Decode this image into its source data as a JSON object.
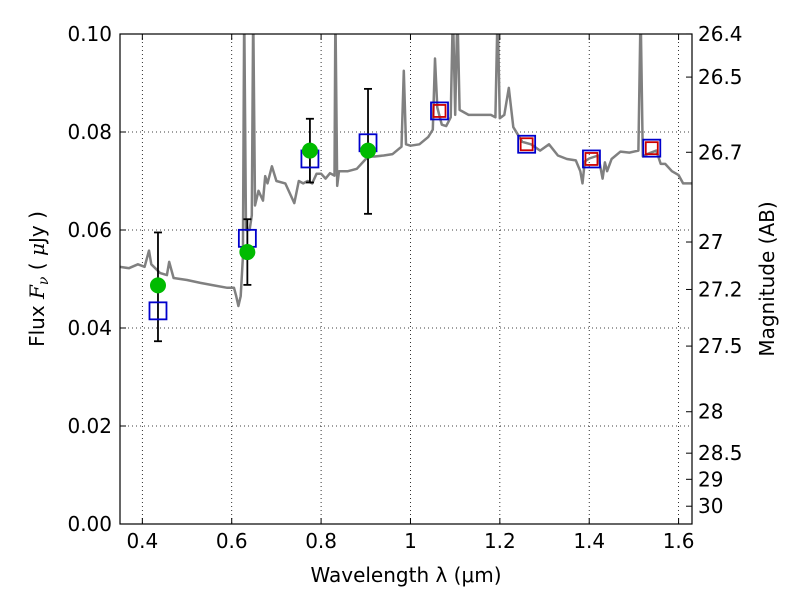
{
  "chart_data": {
    "type": "scatter",
    "xlabel": "Wavelength  λ (μm)",
    "ylabel": "Flux  Fν  ( μJy )",
    "y2label": "Magnitude (AB)",
    "xlim": [
      0.35,
      1.63
    ],
    "ylim": [
      0.0,
      0.1
    ],
    "grid": true,
    "x_ticks": [
      {
        "value": 0.4,
        "label": "0.4"
      },
      {
        "value": 0.6,
        "label": "0.6"
      },
      {
        "value": 0.8,
        "label": "0.8"
      },
      {
        "value": 1.0,
        "label": "1"
      },
      {
        "value": 1.2,
        "label": "1.2"
      },
      {
        "value": 1.4,
        "label": "1.4"
      },
      {
        "value": 1.6,
        "label": "1.6"
      }
    ],
    "y_ticks": [
      {
        "value": 0.0,
        "label": "0.00"
      },
      {
        "value": 0.02,
        "label": "0.02"
      },
      {
        "value": 0.04,
        "label": "0.04"
      },
      {
        "value": 0.06,
        "label": "0.06"
      },
      {
        "value": 0.08,
        "label": "0.08"
      },
      {
        "value": 0.1,
        "label": "0.10"
      }
    ],
    "y2_ticks": [
      {
        "value": 26.4,
        "label": "26.4"
      },
      {
        "value": 26.5,
        "label": "26.5"
      },
      {
        "value": 26.7,
        "label": "26.7"
      },
      {
        "value": 27.0,
        "label": "27"
      },
      {
        "value": 27.2,
        "label": "27.2"
      },
      {
        "value": 27.5,
        "label": "27.5"
      },
      {
        "value": 28.0,
        "label": "28"
      },
      {
        "value": 28.5,
        "label": "28.5"
      },
      {
        "value": 29.0,
        "label": "29"
      },
      {
        "value": 30.0,
        "label": "30"
      }
    ],
    "series": [
      {
        "kind": "line",
        "color": "#808080",
        "points": [
          [
            0.35,
            0.0525
          ],
          [
            0.37,
            0.0522
          ],
          [
            0.39,
            0.053
          ],
          [
            0.405,
            0.0525
          ],
          [
            0.415,
            0.0558
          ],
          [
            0.42,
            0.053
          ],
          [
            0.44,
            0.0512
          ],
          [
            0.455,
            0.0508
          ],
          [
            0.46,
            0.0535
          ],
          [
            0.47,
            0.0502
          ],
          [
            0.5,
            0.0498
          ],
          [
            0.53,
            0.0492
          ],
          [
            0.56,
            0.0487
          ],
          [
            0.59,
            0.0482
          ],
          [
            0.605,
            0.0482
          ],
          [
            0.61,
            0.0465
          ],
          [
            0.615,
            0.0445
          ],
          [
            0.62,
            0.0465
          ],
          [
            0.625,
            0.0545
          ],
          [
            0.628,
            0.105
          ],
          [
            0.632,
            0.06
          ],
          [
            0.64,
            0.06
          ],
          [
            0.645,
            0.063
          ],
          [
            0.648,
            0.105
          ],
          [
            0.652,
            0.065
          ],
          [
            0.66,
            0.068
          ],
          [
            0.67,
            0.066
          ],
          [
            0.675,
            0.071
          ],
          [
            0.68,
            0.0695
          ],
          [
            0.69,
            0.073
          ],
          [
            0.7,
            0.07
          ],
          [
            0.72,
            0.0695
          ],
          [
            0.74,
            0.0655
          ],
          [
            0.75,
            0.07
          ],
          [
            0.76,
            0.0695
          ],
          [
            0.77,
            0.07
          ],
          [
            0.78,
            0.0695
          ],
          [
            0.79,
            0.0715
          ],
          [
            0.8,
            0.0715
          ],
          [
            0.81,
            0.0705
          ],
          [
            0.82,
            0.0716
          ],
          [
            0.83,
            0.0711
          ],
          [
            0.832,
            0.105
          ],
          [
            0.836,
            0.069
          ],
          [
            0.84,
            0.072
          ],
          [
            0.86,
            0.072
          ],
          [
            0.88,
            0.0725
          ],
          [
            0.9,
            0.0745
          ],
          [
            0.91,
            0.075
          ],
          [
            0.92,
            0.075
          ],
          [
            0.94,
            0.0752
          ],
          [
            0.96,
            0.0755
          ],
          [
            0.98,
            0.077
          ],
          [
            0.985,
            0.0925
          ],
          [
            0.99,
            0.0775
          ],
          [
            1.0,
            0.0772
          ],
          [
            1.02,
            0.0775
          ],
          [
            1.04,
            0.079
          ],
          [
            1.05,
            0.0805
          ],
          [
            1.055,
            0.095
          ],
          [
            1.06,
            0.085
          ],
          [
            1.07,
            0.0815
          ],
          [
            1.08,
            0.0812
          ],
          [
            1.09,
            0.083
          ],
          [
            1.095,
            0.105
          ],
          [
            1.1,
            0.0835
          ],
          [
            1.105,
            0.105
          ],
          [
            1.11,
            0.0845
          ],
          [
            1.13,
            0.0835
          ],
          [
            1.16,
            0.0835
          ],
          [
            1.18,
            0.0835
          ],
          [
            1.19,
            0.083
          ],
          [
            1.195,
            0.105
          ],
          [
            1.2,
            0.0828
          ],
          [
            1.21,
            0.0835
          ],
          [
            1.22,
            0.089
          ],
          [
            1.23,
            0.081
          ],
          [
            1.25,
            0.078
          ],
          [
            1.27,
            0.0775
          ],
          [
            1.29,
            0.0762
          ],
          [
            1.31,
            0.0775
          ],
          [
            1.33,
            0.0752
          ],
          [
            1.35,
            0.0745
          ],
          [
            1.37,
            0.0742
          ],
          [
            1.38,
            0.072
          ],
          [
            1.385,
            0.0695
          ],
          [
            1.39,
            0.074
          ],
          [
            1.4,
            0.0746
          ],
          [
            1.42,
            0.0752
          ],
          [
            1.43,
            0.0705
          ],
          [
            1.435,
            0.0738
          ],
          [
            1.44,
            0.072
          ],
          [
            1.45,
            0.0745
          ],
          [
            1.47,
            0.076
          ],
          [
            1.49,
            0.0758
          ],
          [
            1.51,
            0.0762
          ],
          [
            1.515,
            0.105
          ],
          [
            1.52,
            0.075
          ],
          [
            1.53,
            0.0755
          ],
          [
            1.55,
            0.0762
          ],
          [
            1.56,
            0.0735
          ],
          [
            1.57,
            0.0735
          ],
          [
            1.585,
            0.072
          ],
          [
            1.6,
            0.0712
          ],
          [
            1.61,
            0.0695
          ],
          [
            1.63,
            0.0695
          ]
        ]
      },
      {
        "kind": "open-square",
        "color": "#0000cc",
        "points": [
          [
            0.435,
            0.0435
          ],
          [
            0.635,
            0.0583
          ],
          [
            0.775,
            0.0745
          ],
          [
            0.905,
            0.0778
          ],
          [
            1.065,
            0.0843
          ],
          [
            1.26,
            0.0775
          ],
          [
            1.405,
            0.0745
          ],
          [
            1.54,
            0.0767
          ]
        ]
      },
      {
        "kind": "open-square",
        "color": "#cc0000",
        "points": [
          [
            1.065,
            0.0843
          ],
          [
            1.26,
            0.0775
          ],
          [
            1.405,
            0.0745
          ],
          [
            1.54,
            0.0767
          ]
        ]
      },
      {
        "kind": "filled-circle",
        "color": "#00bb00",
        "points": [
          [
            0.435,
            0.0487
          ],
          [
            0.635,
            0.0555
          ],
          [
            0.775,
            0.0762
          ],
          [
            0.905,
            0.0762
          ]
        ],
        "error_low": [
          0.0373,
          0.0488,
          0.0697,
          0.0633
        ],
        "error_high": [
          0.0595,
          0.0622,
          0.0827,
          0.0888
        ]
      }
    ]
  }
}
